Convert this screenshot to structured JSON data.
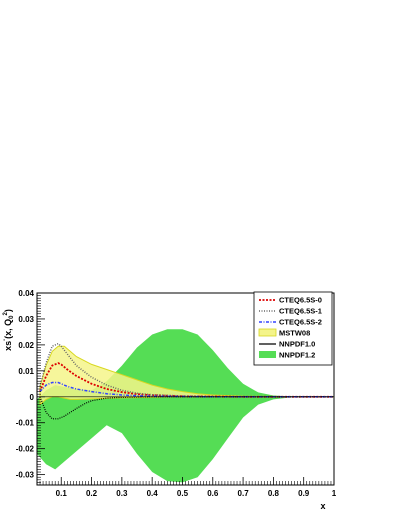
{
  "chart_data": {
    "type": "area",
    "xlabel": "x",
    "ylabel_main": "xs",
    "ylabel_sup": "-",
    "ylabel_args": "(x, Q",
    "ylabel_q_sub": "0",
    "ylabel_q_sup": "2",
    "ylabel_close": ")",
    "xlim": [
      0.02,
      1.0
    ],
    "ylim": [
      -0.034,
      0.04
    ],
    "x_ticks": [
      0.1,
      0.2,
      0.3,
      0.4,
      0.5,
      0.6,
      0.7,
      0.8,
      0.9,
      1.0
    ],
    "x_tick_labels": [
      "0.1",
      "0.2",
      "0.3",
      "0.4",
      "0.5",
      "0.6",
      "0.7",
      "0.8",
      "0.9",
      "1"
    ],
    "y_ticks": [
      -0.03,
      -0.02,
      -0.01,
      0,
      0.01,
      0.02,
      0.03,
      0.04
    ],
    "y_tick_labels": [
      "-0.03",
      "-0.02",
      "-0.01",
      "0",
      "0.01",
      "0.02",
      "0.03",
      "0.04"
    ],
    "grid": false,
    "legend_position": "top-right",
    "colors": {
      "nnpdf12": "#55dd55",
      "mstw08_fill": "#f4f48a",
      "mstw08_edge": "#d8d820",
      "cteq0": "#dd0000",
      "cteq1": "#666666",
      "cteq2": "#3344ff",
      "nnpdf10": "#000000"
    },
    "series": [
      {
        "name": "NNPDF1.2",
        "kind": "band",
        "x": [
          0.02,
          0.05,
          0.08,
          0.1,
          0.15,
          0.2,
          0.25,
          0.3,
          0.35,
          0.4,
          0.45,
          0.5,
          0.55,
          0.6,
          0.65,
          0.7,
          0.75,
          0.8,
          0.85,
          0.9,
          0.95,
          1.0
        ],
        "upper": [
          -0.001,
          0.0025,
          0.0045,
          0.004,
          0.003,
          0.0025,
          0.006,
          0.012,
          0.019,
          0.024,
          0.026,
          0.026,
          0.024,
          0.018,
          0.011,
          0.005,
          0.0017,
          0.0005,
          0.0002,
          0.0001,
          0.0,
          0.0
        ],
        "lower": [
          -0.022,
          -0.026,
          -0.028,
          -0.026,
          -0.021,
          -0.016,
          -0.011,
          -0.014,
          -0.022,
          -0.029,
          -0.0325,
          -0.033,
          -0.031,
          -0.024,
          -0.016,
          -0.008,
          -0.003,
          -0.001,
          -0.0003,
          -0.0001,
          0.0,
          0.0
        ]
      },
      {
        "name": "MSTW08",
        "kind": "band",
        "x": [
          0.03,
          0.05,
          0.07,
          0.09,
          0.11,
          0.13,
          0.15,
          0.2,
          0.25,
          0.3,
          0.35,
          0.4,
          0.45,
          0.5,
          0.55,
          0.6,
          0.7,
          0.8,
          0.9,
          1.0
        ],
        "upper": [
          0.004,
          0.012,
          0.0175,
          0.0195,
          0.0195,
          0.0175,
          0.0155,
          0.0125,
          0.0105,
          0.0085,
          0.0065,
          0.0045,
          0.003,
          0.002,
          0.0012,
          0.0007,
          0.0002,
          0.0001,
          0.0,
          0.0
        ],
        "lower": [
          -0.003,
          -0.001,
          0.0,
          0.0,
          -0.0005,
          -0.001,
          -0.001,
          -0.0008,
          -0.0006,
          -0.0004,
          -0.0003,
          -0.0002,
          -0.0001,
          0.0,
          0.0,
          0.0,
          0.0,
          0.0,
          0.0,
          0.0
        ]
      },
      {
        "name": "CTEQ6.5S-0",
        "kind": "line",
        "x": [
          0.03,
          0.05,
          0.07,
          0.09,
          0.1,
          0.12,
          0.15,
          0.2,
          0.25,
          0.3,
          0.35,
          0.4,
          0.5,
          0.6,
          0.7,
          0.8,
          0.9,
          1.0
        ],
        "y": [
          0.002,
          0.008,
          0.012,
          0.013,
          0.0125,
          0.0105,
          0.008,
          0.005,
          0.003,
          0.0018,
          0.001,
          0.0006,
          0.0002,
          0.0001,
          0.0,
          0.0,
          0.0,
          0.0
        ]
      },
      {
        "name": "CTEQ6.5S-1",
        "kind": "line",
        "x": [
          0.03,
          0.05,
          0.07,
          0.09,
          0.1,
          0.12,
          0.15,
          0.2,
          0.25,
          0.3,
          0.35,
          0.4,
          0.5,
          0.6,
          0.7,
          0.8,
          0.9,
          1.0
        ],
        "y": [
          0.004,
          0.013,
          0.0195,
          0.0205,
          0.0195,
          0.0165,
          0.012,
          0.0075,
          0.0045,
          0.0025,
          0.0014,
          0.0008,
          0.0003,
          0.0001,
          0.0,
          0.0,
          0.0,
          0.0
        ]
      },
      {
        "name": "CTEQ6.5S-2",
        "kind": "line",
        "x": [
          0.03,
          0.05,
          0.07,
          0.09,
          0.1,
          0.12,
          0.15,
          0.2,
          0.25,
          0.3,
          0.35,
          0.4,
          0.5,
          0.6,
          0.7,
          0.8,
          0.9,
          1.0
        ],
        "y": [
          0.002,
          0.0045,
          0.0055,
          0.0055,
          0.005,
          0.004,
          0.003,
          0.002,
          0.0012,
          0.0007,
          0.0004,
          0.0002,
          0.0001,
          0.0,
          0.0,
          0.0,
          0.0,
          0.0
        ]
      },
      {
        "name": "NNPDF1.0",
        "kind": "line",
        "x": [
          0.03,
          0.05,
          0.07,
          0.09,
          0.11,
          0.13,
          0.15,
          0.18,
          0.2,
          0.25,
          0.3,
          0.4,
          0.5,
          0.6,
          0.8,
          1.0
        ],
        "y": [
          0.0,
          -0.006,
          -0.0085,
          -0.0085,
          -0.0075,
          -0.006,
          -0.0045,
          -0.0025,
          -0.0015,
          -0.0005,
          -0.0002,
          0.0,
          0.0,
          0.0,
          0.0,
          0.0
        ]
      }
    ]
  }
}
